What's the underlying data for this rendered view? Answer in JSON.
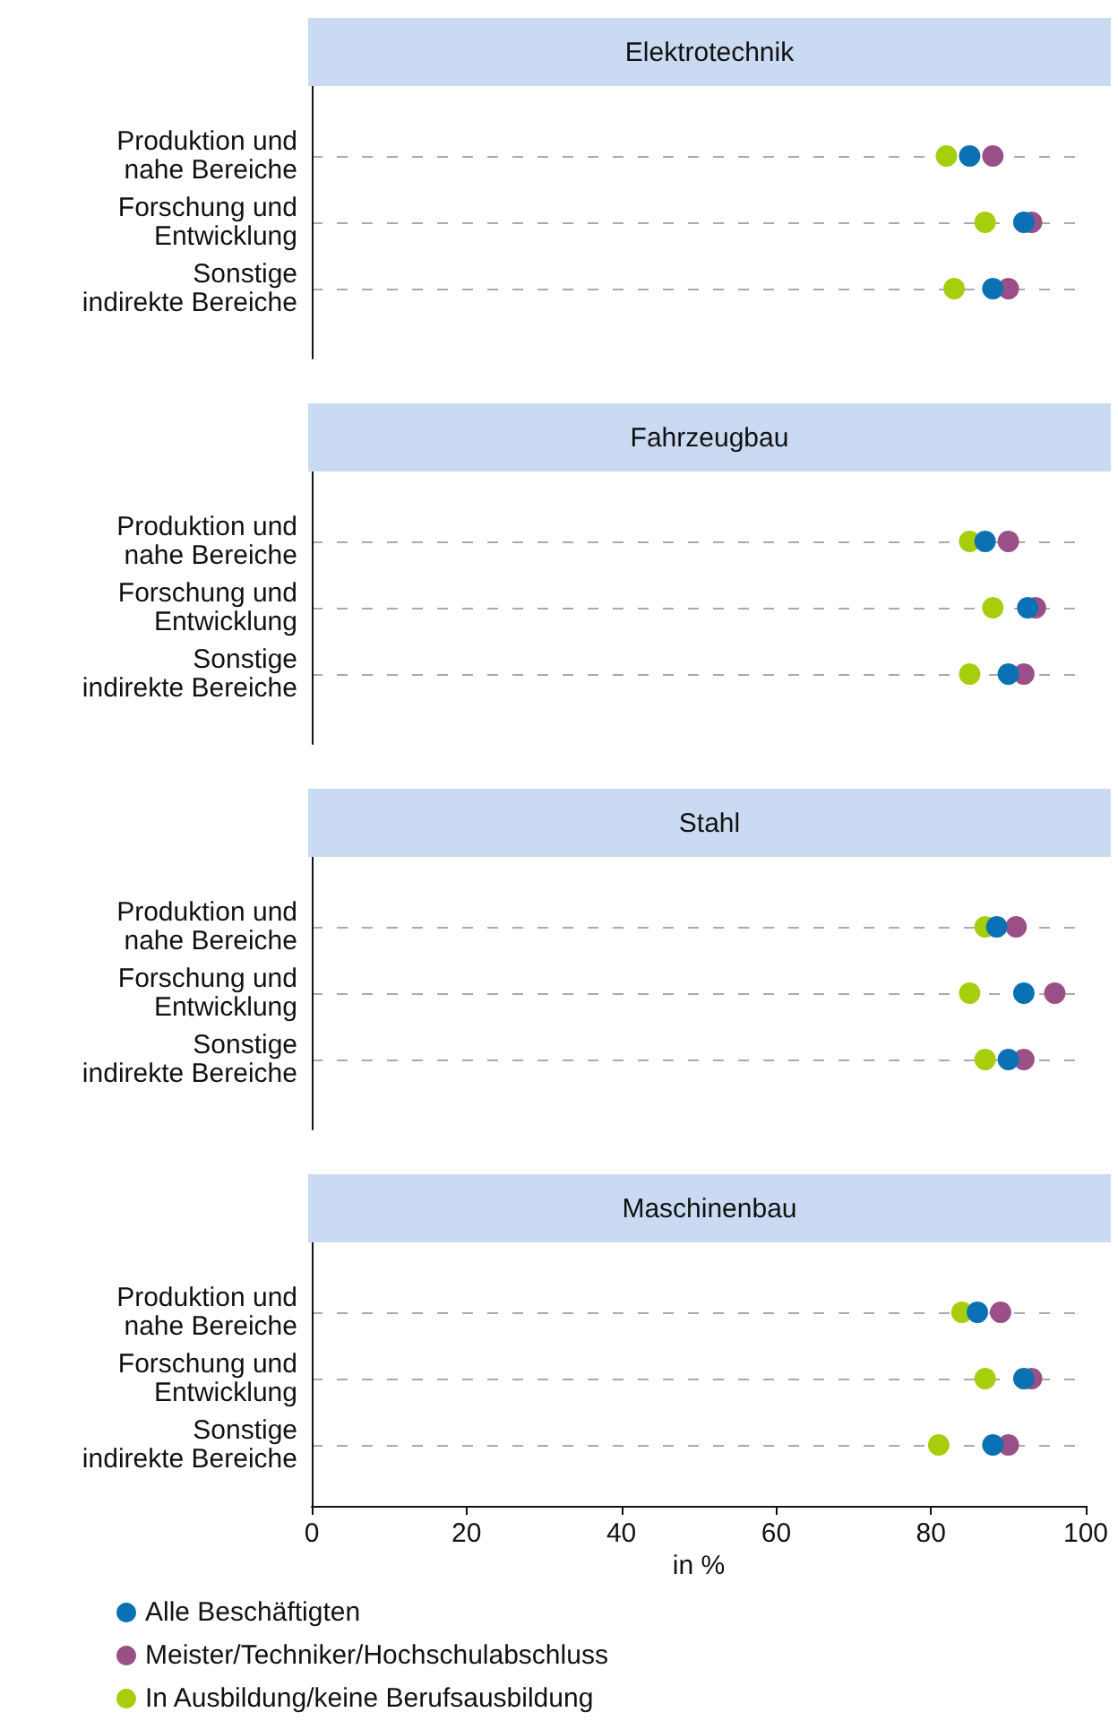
{
  "chart_data": [
    {
      "type": "scatter",
      "title": "Elektrotechnik",
      "categories": [
        "Produktion und\nnahe Bereiche",
        "Forschung und\nEntwicklung",
        "Sonstige\nindirekte Bereiche"
      ],
      "orientation": "horizontal",
      "xlim": [
        0,
        100
      ],
      "xticks": [
        0,
        20,
        40,
        60,
        80,
        100
      ],
      "tick_labels": "y",
      "grid": "y",
      "marker": "circle",
      "legend": false,
      "series": [
        {
          "color": "#9b4f87",
          "values": [
            88,
            93,
            90
          ]
        },
        {
          "color": "#a6ce0c",
          "values": [
            82,
            87,
            83
          ]
        },
        {
          "color": "#0a71b4",
          "values": [
            85,
            92,
            88
          ]
        }
      ]
    },
    {
      "type": "scatter",
      "title": "Fahrzeugbau",
      "categories": [
        "Produktion und\nnahe Bereiche",
        "Forschung und\nEntwicklung",
        "Sonstige\nindirekte Bereiche"
      ],
      "orientation": "horizontal",
      "xlim": [
        0,
        100
      ],
      "xticks": [
        0,
        20,
        40,
        60,
        80,
        100
      ],
      "tick_labels": "y",
      "grid": "y",
      "marker": "circle",
      "legend": false,
      "series": [
        {
          "color": "#9b4f87",
          "values": [
            90,
            93.5,
            92
          ]
        },
        {
          "color": "#a6ce0c",
          "values": [
            85,
            88,
            85
          ]
        },
        {
          "color": "#0a71b4",
          "values": [
            87,
            92.5,
            90
          ]
        }
      ]
    },
    {
      "type": "scatter",
      "title": "Stahl",
      "categories": [
        "Produktion und\nnahe Bereiche",
        "Forschung und\nEntwicklung",
        "Sonstige\nindirekte Bereiche"
      ],
      "orientation": "horizontal",
      "xlim": [
        0,
        100
      ],
      "xticks": [
        0,
        20,
        40,
        60,
        80,
        100
      ],
      "tick_labels": "y",
      "grid": "y",
      "marker": "circle",
      "legend": false,
      "series": [
        {
          "color": "#9b4f87",
          "values": [
            91,
            96,
            92
          ]
        },
        {
          "color": "#a6ce0c",
          "values": [
            87,
            85,
            87
          ]
        },
        {
          "color": "#0a71b4",
          "values": [
            88.5,
            92,
            90
          ]
        }
      ]
    },
    {
      "type": "scatter",
      "title": "Maschinenbau",
      "categories": [
        "Produktion und\nnahe Bereiche",
        "Forschung und\nEntwicklung",
        "Sonstige\nindirekte Bereiche"
      ],
      "orientation": "horizontal",
      "xlim": [
        0,
        100
      ],
      "xticks": [
        0,
        20,
        40,
        60,
        80,
        100
      ],
      "xlabel": "in %",
      "grid": "y",
      "marker": "circle",
      "legend": "bottom",
      "series": [
        {
          "name": "Meister/Techniker/Hochschulabschluss",
          "color": "#9b4f87",
          "values": [
            89,
            93,
            90
          ]
        },
        {
          "name": "In Ausbildung/keine Berufsausbildung",
          "color": "#a6ce0c",
          "values": [
            84,
            87,
            81
          ]
        },
        {
          "name": "Alle Beschäftigten",
          "color": "#0a71b4",
          "values": [
            86,
            92,
            88
          ]
        }
      ]
    }
  ]
}
